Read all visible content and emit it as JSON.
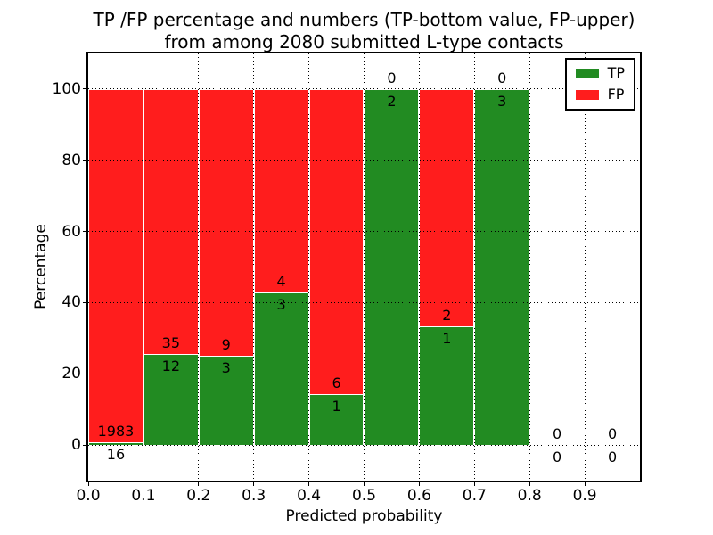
{
  "chart_data": {
    "type": "bar",
    "stacked": true,
    "title_line1": "TP /FP percentage and numbers (TP-bottom value, FP-upper)",
    "title_line2": "from among 2080 submitted L-type contacts",
    "xlabel": "Predicted probability",
    "ylabel": "Percentage",
    "xlim": [
      0.0,
      1.0
    ],
    "ylim": [
      -10,
      110
    ],
    "grid": "dotted",
    "legend_position": "upper right",
    "legend": [
      {
        "label": "TP",
        "color": "#228B22"
      },
      {
        "label": "FP",
        "color": "#FF1D1D"
      }
    ],
    "colors": {
      "tp": "#228B22",
      "fp": "#FF1D1D",
      "edge": "#ffffff",
      "grid": "#000000"
    },
    "bin_width": 0.1,
    "bins": [
      {
        "x0": 0.0,
        "tp": 16,
        "fp": 1983
      },
      {
        "x0": 0.1,
        "tp": 12,
        "fp": 35
      },
      {
        "x0": 0.2,
        "tp": 3,
        "fp": 9
      },
      {
        "x0": 0.3,
        "tp": 3,
        "fp": 4
      },
      {
        "x0": 0.4,
        "tp": 1,
        "fp": 6
      },
      {
        "x0": 0.5,
        "tp": 2,
        "fp": 0
      },
      {
        "x0": 0.6,
        "tp": 1,
        "fp": 2
      },
      {
        "x0": 0.7,
        "tp": 3,
        "fp": 0
      },
      {
        "x0": 0.8,
        "tp": 0,
        "fp": 0
      },
      {
        "x0": 0.9,
        "tp": 0,
        "fp": 0
      }
    ],
    "x_ticks": [
      {
        "v": 0.0,
        "label": "0.0"
      },
      {
        "v": 0.1,
        "label": "0.1"
      },
      {
        "v": 0.2,
        "label": "0.2"
      },
      {
        "v": 0.3,
        "label": "0.3"
      },
      {
        "v": 0.4,
        "label": "0.4"
      },
      {
        "v": 0.5,
        "label": "0.5"
      },
      {
        "v": 0.6,
        "label": "0.6"
      },
      {
        "v": 0.7,
        "label": "0.7"
      },
      {
        "v": 0.8,
        "label": "0.8"
      },
      {
        "v": 0.9,
        "label": "0.9"
      }
    ],
    "y_ticks": [
      {
        "v": 0,
        "label": "0"
      },
      {
        "v": 20,
        "label": "20"
      },
      {
        "v": 40,
        "label": "40"
      },
      {
        "v": 60,
        "label": "60"
      },
      {
        "v": 80,
        "label": "80"
      },
      {
        "v": 100,
        "label": "100"
      }
    ]
  }
}
